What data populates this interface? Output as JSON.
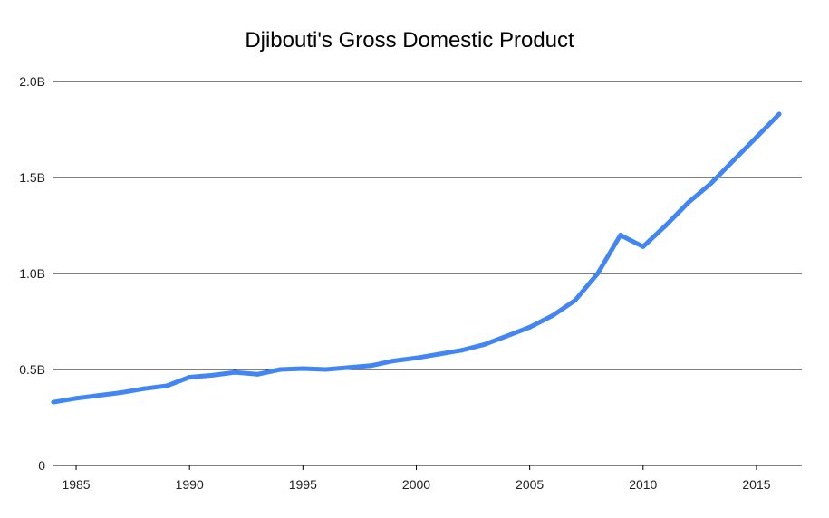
{
  "chart_data": {
    "type": "line",
    "title": "Djibouti's Gross Domestic Product",
    "xlabel": "",
    "ylabel": "",
    "x_ticks": [
      "1985",
      "1990",
      "1995",
      "2000",
      "2005",
      "2010",
      "2015"
    ],
    "y_ticks": [
      "0",
      "0.5B",
      "1.0B",
      "1.5B",
      "2.0B"
    ],
    "xlim": [
      1984,
      2017
    ],
    "ylim": [
      0,
      2.0
    ],
    "y_unit": "billions",
    "grid": true,
    "legend": "none",
    "series": [
      {
        "color": "#4285f4",
        "x": [
          1984,
          1985,
          1986,
          1987,
          1988,
          1989,
          1990,
          1991,
          1992,
          1993,
          1994,
          1995,
          1996,
          1997,
          1998,
          1999,
          2000,
          2001,
          2002,
          2003,
          2004,
          2005,
          2006,
          2007,
          2008,
          2009,
          2010,
          2011,
          2012,
          2013,
          2014,
          2015,
          2016
        ],
        "y": [
          0.33,
          0.35,
          0.365,
          0.38,
          0.4,
          0.415,
          0.46,
          0.47,
          0.485,
          0.475,
          0.5,
          0.505,
          0.5,
          0.51,
          0.52,
          0.545,
          0.56,
          0.58,
          0.6,
          0.63,
          0.675,
          0.72,
          0.78,
          0.86,
          1.0,
          1.2,
          1.14,
          1.25,
          1.37,
          1.47,
          1.59,
          1.71,
          1.83
        ]
      }
    ]
  }
}
